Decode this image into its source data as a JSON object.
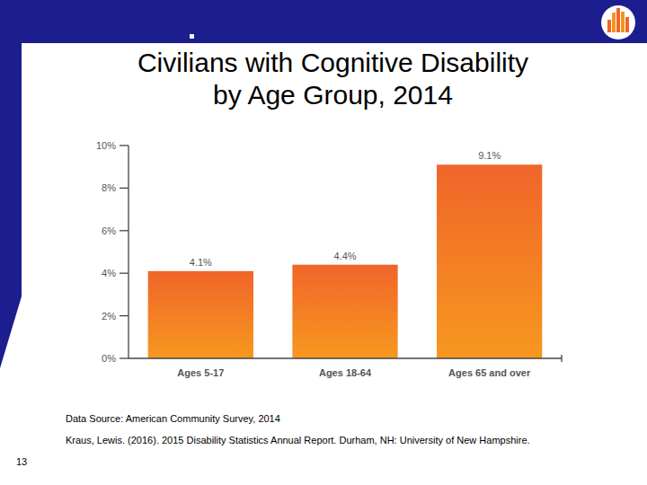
{
  "chart_data": {
    "type": "bar",
    "title": "Civilians with Cognitive Disability by Age Group, 2014",
    "categories": [
      "Ages 5-17",
      "Ages 18-64",
      "Ages 65 and over"
    ],
    "values": [
      4.1,
      4.4,
      9.1
    ],
    "value_labels": [
      "4.1%",
      "4.4%",
      "9.1%"
    ],
    "color": "#f0652a",
    "ylim": [
      0,
      10
    ],
    "yticks": [
      {
        "value": 0,
        "label": "0%"
      },
      {
        "value": 2,
        "label": "2%"
      },
      {
        "value": 4,
        "label": "4%"
      },
      {
        "value": 6,
        "label": "6%"
      },
      {
        "value": 8,
        "label": "8%"
      },
      {
        "value": 10,
        "label": "10%"
      }
    ],
    "grid": false,
    "data_labels": true
  },
  "footer": {
    "sources": [
      "Data Source: American Community Survey, 2014",
      "Kraus, Lewis. (2016). 2015 Disability Statistics Annual Report. Durham, NH: University of New Hampshire."
    ],
    "page_number": "13"
  }
}
